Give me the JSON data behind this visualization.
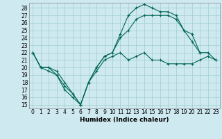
{
  "xlabel": "Humidex (Indice chaleur)",
  "background_color": "#cee9f0",
  "grid_color": "#9fcfcc",
  "line_color": "#006655",
  "xlim": [
    -0.5,
    23.5
  ],
  "ylim": [
    14.5,
    28.7
  ],
  "yticks": [
    15,
    16,
    17,
    18,
    19,
    20,
    21,
    22,
    23,
    24,
    25,
    26,
    27,
    28
  ],
  "xticks": [
    0,
    1,
    2,
    3,
    4,
    5,
    6,
    7,
    8,
    9,
    10,
    11,
    12,
    13,
    14,
    15,
    16,
    17,
    18,
    19,
    20,
    21,
    22,
    23
  ],
  "line1_x": [
    0,
    1,
    2,
    3,
    4,
    5,
    6,
    7,
    8,
    9,
    10,
    11,
    12,
    13,
    14,
    15,
    16,
    17,
    18,
    19,
    20,
    21
  ],
  "line1_y": [
    22,
    20,
    20,
    19,
    17.5,
    16.5,
    15,
    18,
    20,
    21.5,
    22,
    24.5,
    27,
    28,
    28.5,
    28,
    27.5,
    27.5,
    27,
    25,
    23.5,
    22
  ],
  "line2_x": [
    0,
    1,
    2,
    3,
    4,
    5,
    6,
    7,
    8,
    9,
    10,
    11,
    12,
    13,
    14,
    15,
    16,
    17,
    18,
    19,
    20,
    21,
    22,
    23
  ],
  "line2_y": [
    22,
    20,
    19.5,
    19,
    17,
    16,
    15,
    18,
    19.5,
    21,
    21.5,
    22,
    21,
    21.5,
    22,
    21,
    21,
    20.5,
    20.5,
    20.5,
    20.5,
    21,
    21.5,
    21
  ],
  "line3_x": [
    0,
    1,
    2,
    3,
    4,
    5,
    6,
    7,
    8,
    9,
    10,
    11,
    12,
    13,
    14,
    15,
    16,
    17,
    18,
    19,
    20,
    21,
    22,
    23
  ],
  "line3_y": [
    22,
    20,
    20,
    19.5,
    18,
    16.5,
    15,
    18,
    20,
    21.5,
    22,
    24,
    25,
    26.5,
    27,
    27,
    27,
    27,
    26.5,
    25,
    24.5,
    22,
    22,
    21
  ],
  "tick_fontsize": 5.5,
  "xlabel_fontsize": 6.5
}
